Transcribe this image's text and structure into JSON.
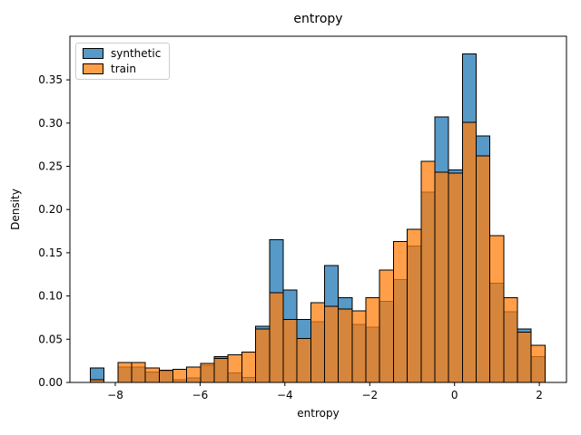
{
  "chart_data": {
    "type": "bar",
    "subtype": "overlapping-density-histogram",
    "title": "entropy",
    "xlabel": "entropy",
    "ylabel": "Density",
    "xlim": [
      -9.07,
      2.64
    ],
    "ylim": [
      0,
      0.4004
    ],
    "grid": false,
    "legend_position": "upper left",
    "bin_start": -8.59,
    "bin_width": 0.325,
    "n_bins": 33,
    "xticks": {
      "values": [
        -8,
        -6,
        -4,
        -2,
        0,
        2
      ],
      "labels": [
        "−8",
        "−6",
        "−4",
        "−2",
        "0",
        "2"
      ]
    },
    "yticks": {
      "values": [
        0.0,
        0.05,
        0.1,
        0.15,
        0.2,
        0.25,
        0.3,
        0.35
      ],
      "labels": [
        "0.00",
        "0.05",
        "0.10",
        "0.15",
        "0.20",
        "0.25",
        "0.30",
        "0.35"
      ]
    },
    "series": [
      {
        "name": "synthetic",
        "color": "#1f77b4",
        "alpha": 0.75,
        "values": [
          0.017,
          0,
          0.018,
          0.018,
          0.012,
          0.013,
          0.003,
          0.005,
          0.02,
          0.03,
          0.011,
          0.006,
          0.065,
          0.165,
          0.107,
          0.073,
          0.07,
          0.135,
          0.098,
          0.067,
          0.064,
          0.094,
          0.119,
          0.158,
          0.22,
          0.307,
          0.246,
          0.38,
          0.285,
          0.115,
          0.082,
          0.062,
          0.03
        ]
      },
      {
        "name": "train",
        "color": "#ff7f0e",
        "alpha": 0.75,
        "values": [
          0.003,
          0,
          0.023,
          0.023,
          0.017,
          0.014,
          0.015,
          0.018,
          0.022,
          0.028,
          0.032,
          0.035,
          0.062,
          0.104,
          0.073,
          0.051,
          0.092,
          0.088,
          0.085,
          0.083,
          0.098,
          0.13,
          0.163,
          0.177,
          0.256,
          0.243,
          0.242,
          0.301,
          0.262,
          0.17,
          0.098,
          0.058,
          0.043
        ]
      }
    ]
  }
}
